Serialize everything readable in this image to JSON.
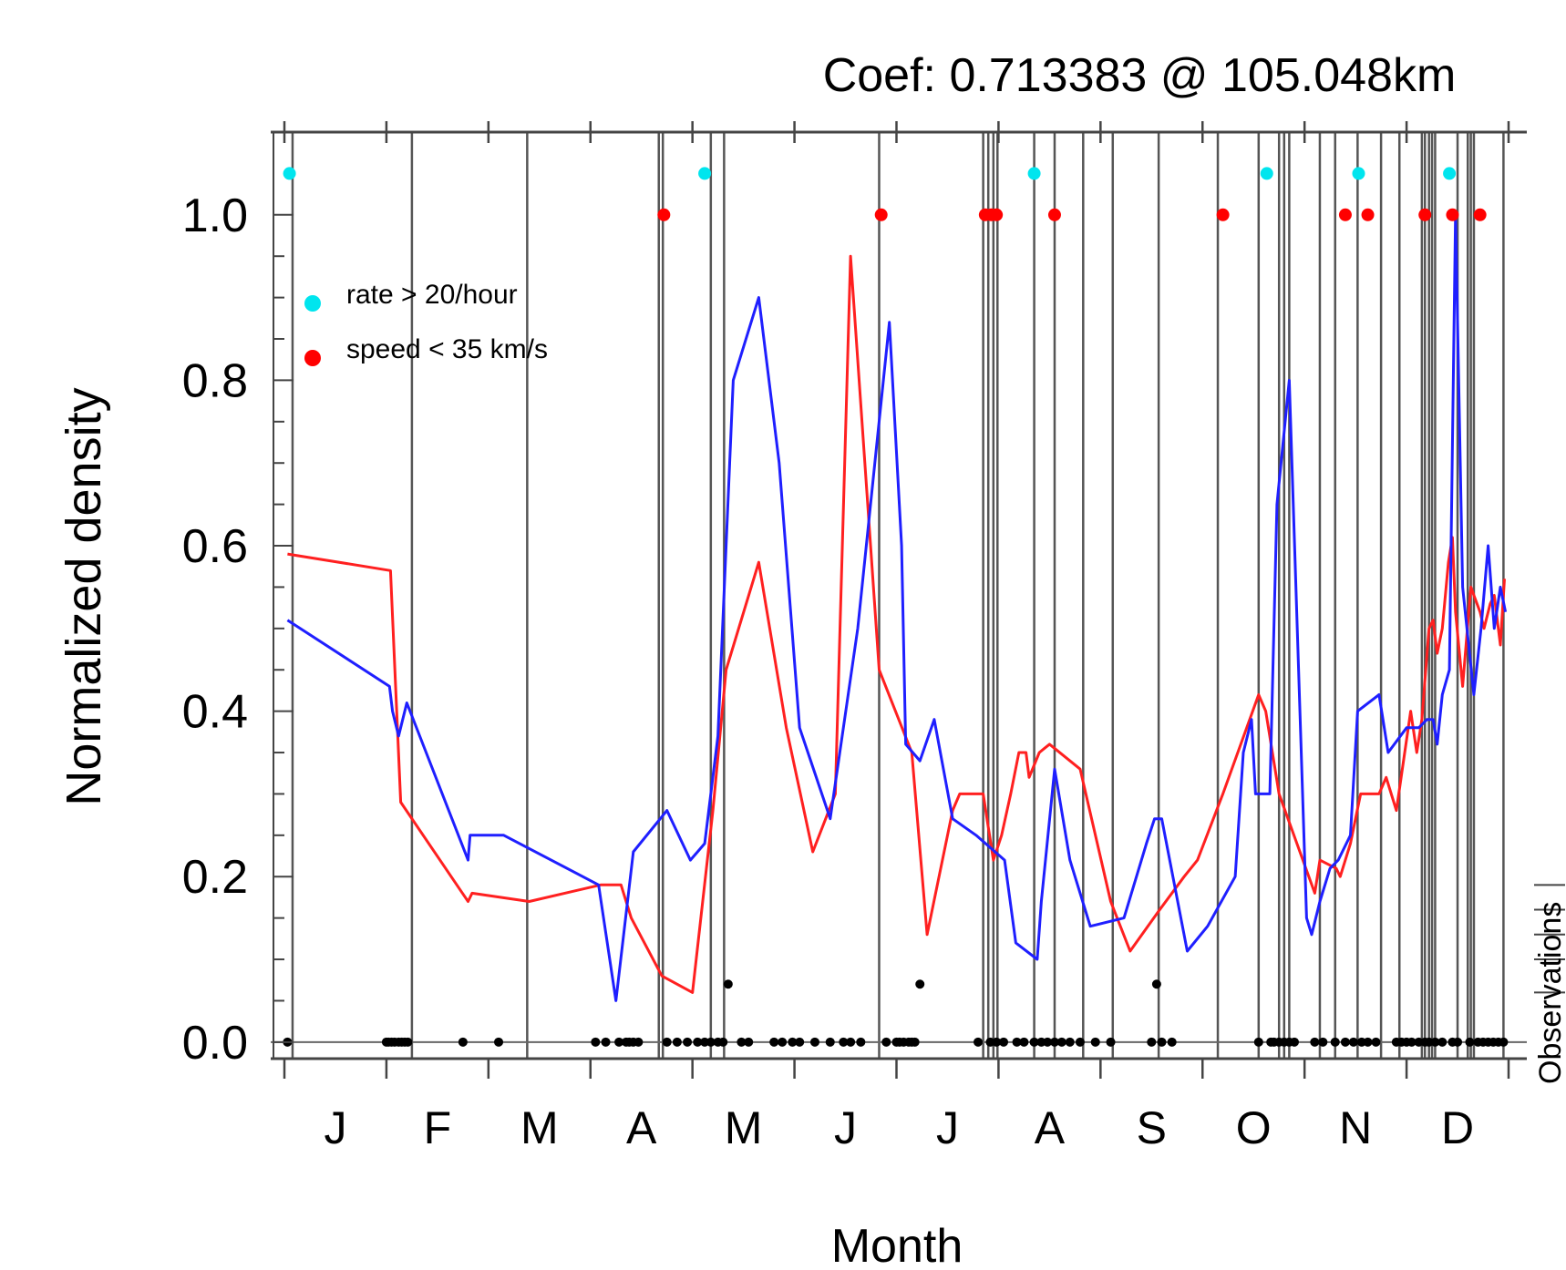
{
  "chart_data": {
    "type": "line",
    "title": "Coef: 0.713383 @ 105.048km",
    "xlabel": "Month",
    "ylabel": "Normalized density",
    "right_label": "Observations",
    "xlim": [
      0,
      12
    ],
    "ylim": [
      -0.02,
      1.1
    ],
    "month_labels": [
      "J",
      "F",
      "M",
      "A",
      "M",
      "J",
      "J",
      "A",
      "S",
      "O",
      "N",
      "D"
    ],
    "y_ticks": [
      "0.0",
      "0.2",
      "0.4",
      "0.6",
      "0.8",
      "1.0"
    ],
    "y_tick_values": [
      0.0,
      0.2,
      0.4,
      0.6,
      0.8,
      1.0
    ],
    "legend": [
      {
        "label": "rate > 20/hour",
        "color": "#00e5ee"
      },
      {
        "label": "speed < 35 km/s",
        "color": "#ff0000"
      }
    ],
    "series": [
      {
        "color": "#ff2020",
        "x": [
          0.03,
          1.04,
          1.14,
          1.8,
          1.84,
          2.4,
          3.1,
          3.3,
          3.4,
          3.7,
          4.0,
          4.2,
          4.33,
          4.65,
          4.92,
          5.18,
          5.4,
          5.55,
          5.83,
          6.15,
          6.3,
          6.55,
          6.62,
          6.85,
          6.95,
          7.03,
          7.12,
          7.2,
          7.27,
          7.3,
          7.4,
          7.5,
          7.8,
          8.1,
          8.29,
          8.58,
          8.82,
          8.95,
          9.2,
          9.55,
          9.62,
          9.75,
          10.1,
          10.15,
          10.31,
          10.35,
          10.45,
          10.55,
          10.73,
          10.8,
          10.9,
          11.04,
          11.1,
          11.15,
          11.22,
          11.26,
          11.3,
          11.35,
          11.41,
          11.45,
          11.48,
          11.55,
          11.63,
          11.72,
          11.76,
          11.82,
          11.86,
          11.92,
          11.96
        ],
        "y": [
          0.59,
          0.57,
          0.29,
          0.17,
          0.18,
          0.17,
          0.19,
          0.19,
          0.15,
          0.08,
          0.06,
          0.28,
          0.45,
          0.58,
          0.38,
          0.23,
          0.3,
          0.95,
          0.45,
          0.35,
          0.13,
          0.28,
          0.3,
          0.3,
          0.22,
          0.25,
          0.3,
          0.35,
          0.35,
          0.32,
          0.35,
          0.36,
          0.33,
          0.17,
          0.11,
          0.16,
          0.2,
          0.22,
          0.3,
          0.42,
          0.4,
          0.3,
          0.18,
          0.22,
          0.21,
          0.2,
          0.24,
          0.3,
          0.3,
          0.32,
          0.28,
          0.4,
          0.35,
          0.39,
          0.5,
          0.51,
          0.47,
          0.5,
          0.58,
          0.61,
          0.52,
          0.43,
          0.55,
          0.52,
          0.5,
          0.53,
          0.54,
          0.48,
          0.56
        ]
      },
      {
        "color": "#1f1fff",
        "x": [
          0.03,
          1.03,
          1.06,
          1.12,
          1.2,
          1.8,
          1.82,
          2.15,
          3.08,
          3.25,
          3.42,
          3.75,
          3.98,
          4.12,
          4.25,
          4.4,
          4.65,
          4.85,
          5.05,
          5.35,
          5.62,
          5.93,
          6.05,
          6.09,
          6.23,
          6.37,
          6.55,
          6.78,
          7.06,
          7.17,
          7.38,
          7.42,
          7.55,
          7.7,
          7.9,
          8.23,
          8.45,
          8.53,
          8.6,
          8.85,
          9.05,
          9.32,
          9.4,
          9.48,
          9.52,
          9.66,
          9.73,
          9.85,
          10.02,
          10.07,
          10.15,
          10.25,
          10.33,
          10.45,
          10.52,
          10.73,
          10.82,
          11.0,
          11.12,
          11.2,
          11.26,
          11.3,
          11.35,
          11.42,
          11.48,
          11.55,
          11.66,
          11.73,
          11.8,
          11.86,
          11.92,
          11.97
        ],
        "y": [
          0.51,
          0.43,
          0.4,
          0.37,
          0.41,
          0.22,
          0.25,
          0.25,
          0.19,
          0.05,
          0.23,
          0.28,
          0.22,
          0.24,
          0.37,
          0.8,
          0.9,
          0.7,
          0.38,
          0.27,
          0.5,
          0.87,
          0.6,
          0.36,
          0.34,
          0.39,
          0.27,
          0.25,
          0.22,
          0.12,
          0.1,
          0.17,
          0.33,
          0.22,
          0.14,
          0.15,
          0.24,
          0.27,
          0.27,
          0.11,
          0.14,
          0.2,
          0.35,
          0.39,
          0.3,
          0.3,
          0.65,
          0.8,
          0.15,
          0.13,
          0.17,
          0.21,
          0.22,
          0.25,
          0.4,
          0.42,
          0.35,
          0.38,
          0.38,
          0.39,
          0.39,
          0.36,
          0.42,
          0.45,
          1.0,
          0.55,
          0.42,
          0.5,
          0.6,
          0.5,
          0.55,
          0.52
        ]
      }
    ],
    "event_lines": [
      0.08,
      1.25,
      2.38,
      3.67,
      3.71,
      4.18,
      4.31,
      5.83,
      6.85,
      6.9,
      6.95,
      6.99,
      7.35,
      7.55,
      7.83,
      8.12,
      8.57,
      9.15,
      9.55,
      9.75,
      9.8,
      9.85,
      10.15,
      10.3,
      10.52,
      10.75,
      10.93,
      11.15,
      11.18,
      11.22,
      11.25,
      11.28,
      11.5,
      11.6,
      11.63,
      11.66,
      11.95
    ],
    "rate_events": [
      0.05,
      4.12,
      7.35,
      9.63,
      10.53,
      11.42
    ],
    "speed_events": [
      3.72,
      5.85,
      6.87,
      6.93,
      6.98,
      7.55,
      9.2,
      10.4,
      10.62,
      11.18,
      11.45,
      11.72
    ],
    "observations_main": [
      0.03,
      1.0,
      1.02,
      1.05,
      1.08,
      1.12,
      1.15,
      1.18,
      1.21,
      1.75,
      2.1,
      3.05,
      3.15,
      3.28,
      3.35,
      3.38,
      3.42,
      3.47,
      3.75,
      3.85,
      3.95,
      4.05,
      4.12,
      4.18,
      4.25,
      4.3,
      4.48,
      4.55,
      4.8,
      4.88,
      4.98,
      5.05,
      5.2,
      5.35,
      5.48,
      5.55,
      5.65,
      5.9,
      6.0,
      6.03,
      6.07,
      6.12,
      6.15,
      6.18,
      6.8,
      6.92,
      6.98,
      7.05,
      7.18,
      7.25,
      7.35,
      7.42,
      7.48,
      7.55,
      7.62,
      7.7,
      7.8,
      7.95,
      8.1,
      8.5,
      8.6,
      8.7,
      9.55,
      9.67,
      9.7,
      9.75,
      9.8,
      9.85,
      9.9,
      10.1,
      10.18,
      10.3,
      10.4,
      10.48,
      10.56,
      10.62,
      10.7,
      10.9,
      10.95,
      11.0,
      11.05,
      11.12,
      11.18,
      11.22,
      11.28,
      11.35,
      11.45,
      11.5,
      11.62,
      11.7,
      11.75,
      11.8,
      11.85,
      11.9,
      11.95
    ],
    "observations_upper": [
      4.35,
      6.23,
      8.55
    ]
  }
}
